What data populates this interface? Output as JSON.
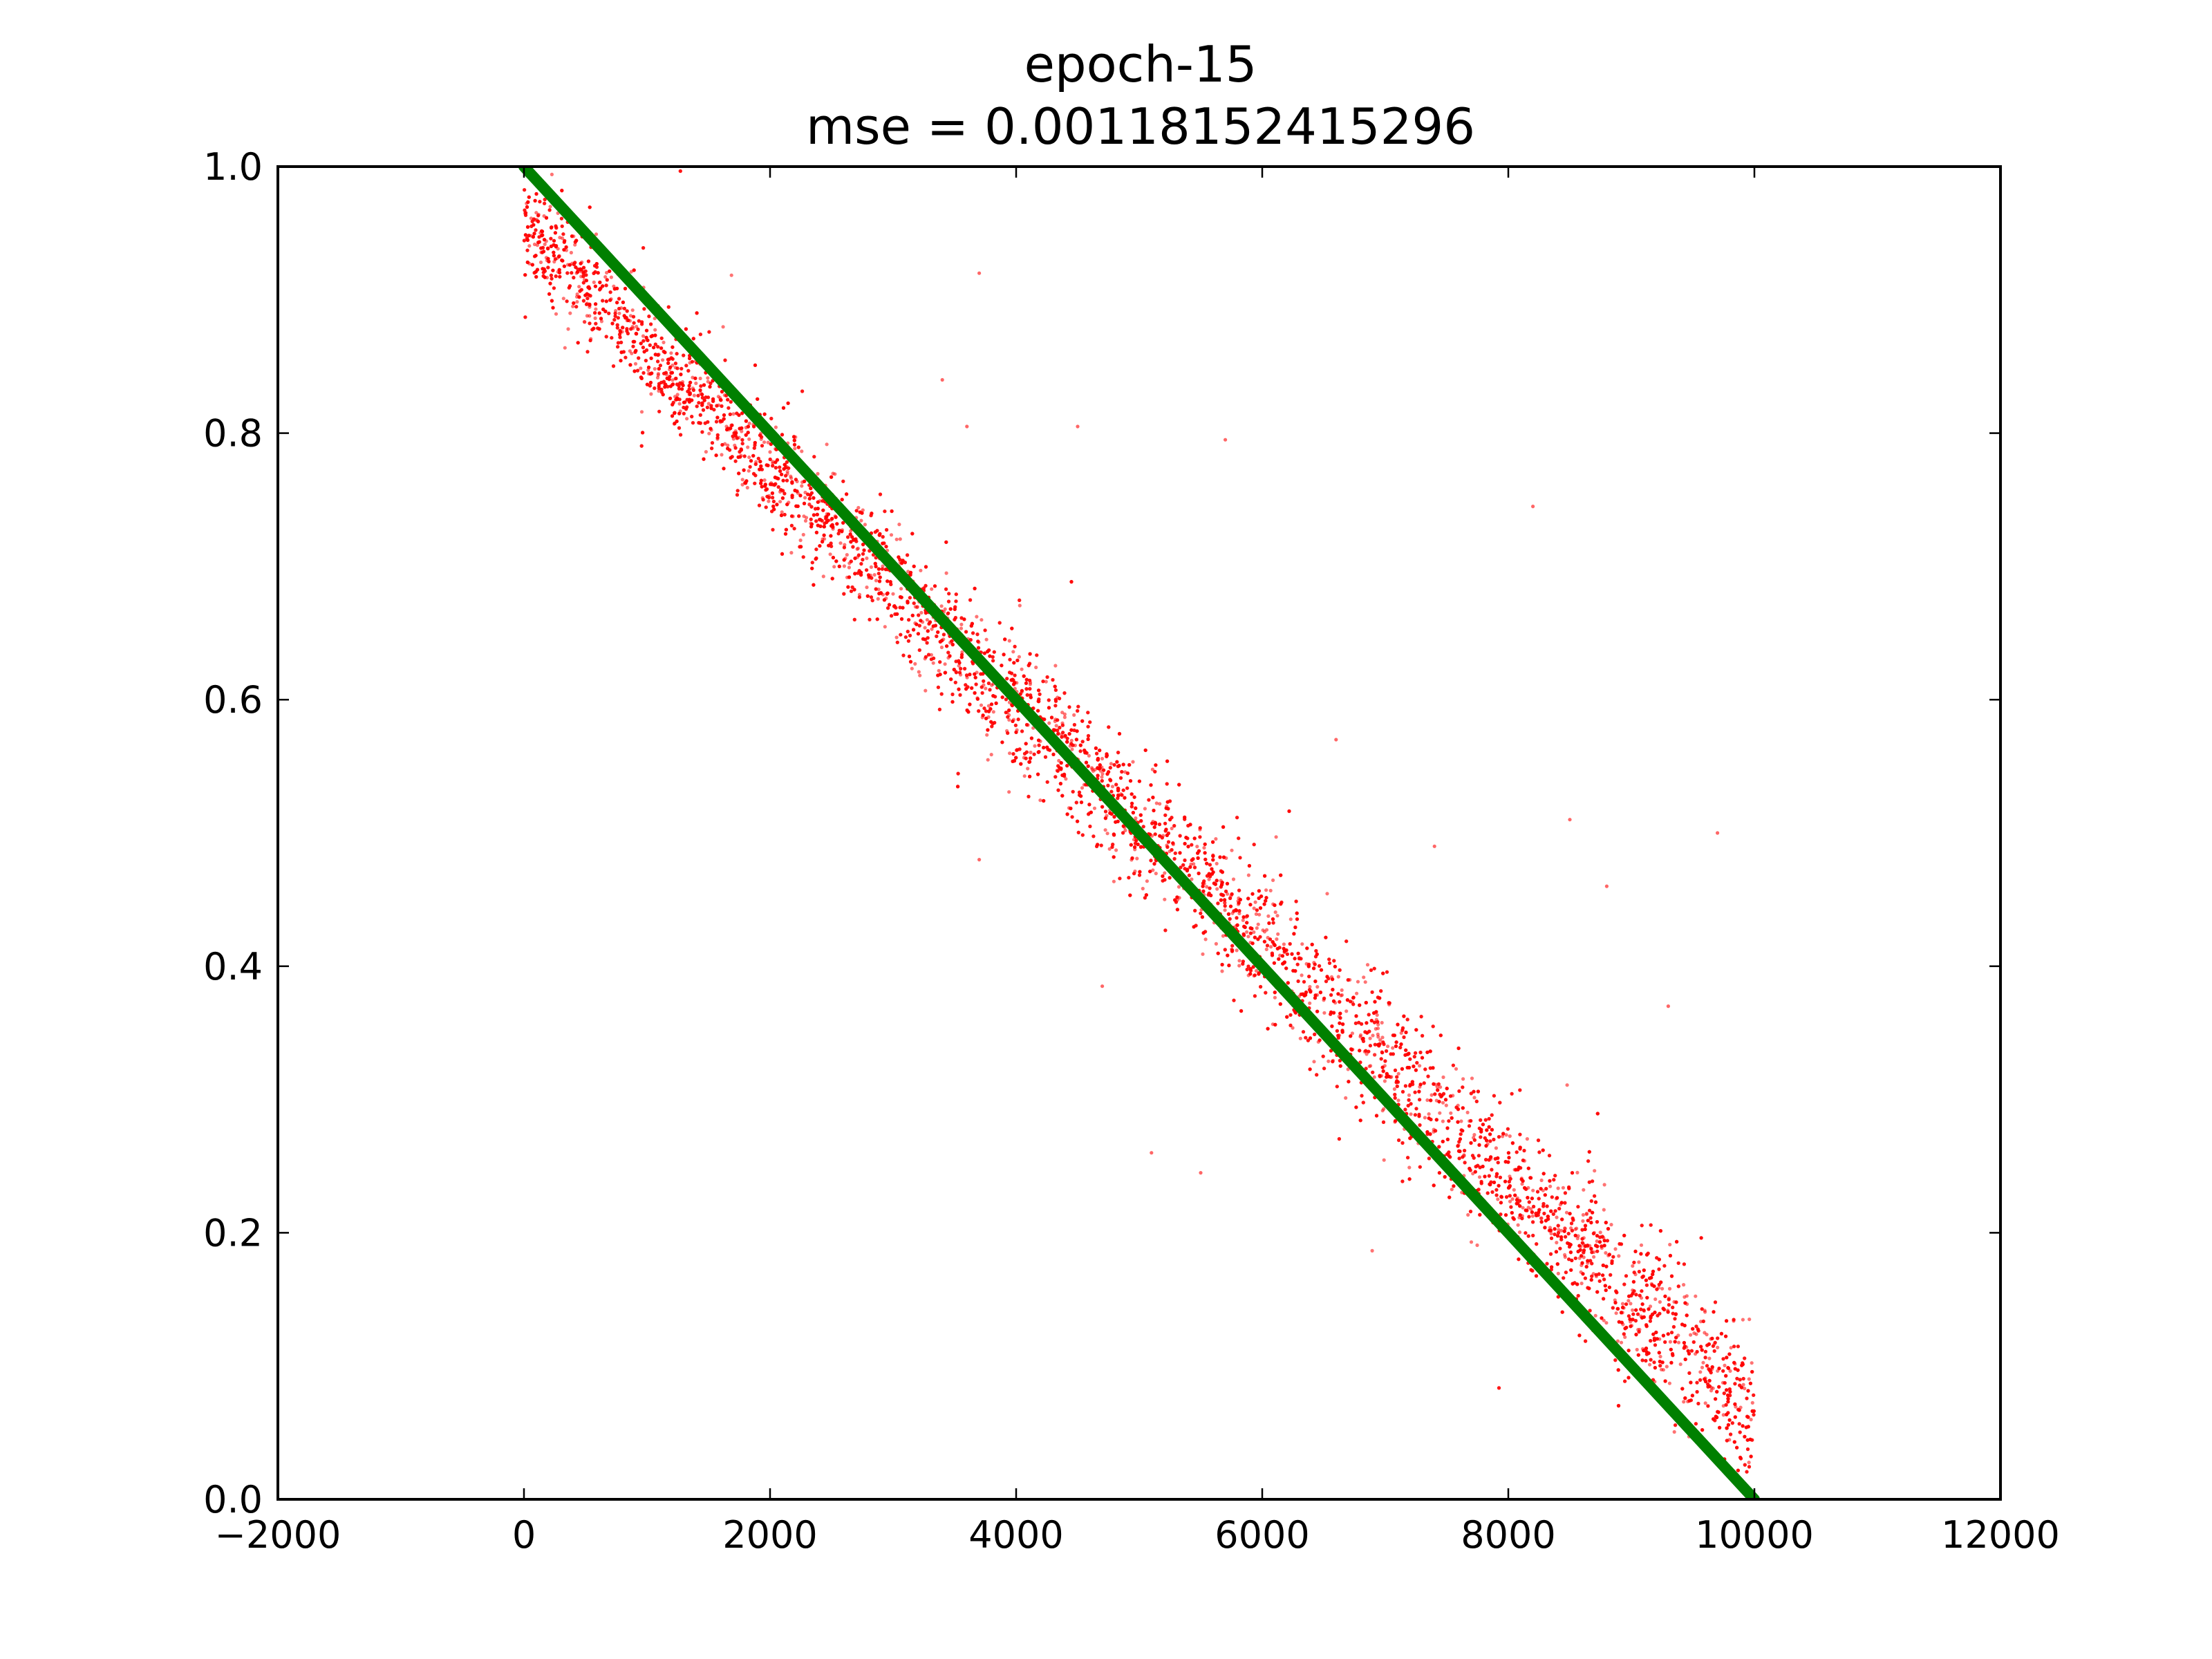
{
  "chart_data": {
    "type": "scatter",
    "title": "epoch-15",
    "subtitle": "mse = 0.00118152415296",
    "xlabel": "",
    "ylabel": "",
    "xlim": [
      -2000,
      12000
    ],
    "ylim": [
      0.0,
      1.0
    ],
    "x_ticks": [
      "−2000",
      "0",
      "2000",
      "4000",
      "6000",
      "8000",
      "10000",
      "12000"
    ],
    "y_ticks": [
      "0.0",
      "0.2",
      "0.4",
      "0.6",
      "0.8",
      "1.0"
    ],
    "x_tick_values": [
      -2000,
      0,
      2000,
      4000,
      6000,
      8000,
      10000,
      12000
    ],
    "y_tick_values": [
      0.0,
      0.2,
      0.4,
      0.6,
      0.8,
      1.0
    ],
    "grid": false,
    "legend": "none",
    "series": [
      {
        "kind": "scatter",
        "color": "#ff0000",
        "x_range": [
          0,
          10000
        ],
        "approx_count": 10000,
        "trend": {
          "x": [
            0,
            10000
          ],
          "y": [
            0.955,
            0.06
          ]
        },
        "outliers": [
          {
            "x": 3700,
            "y": 0.92
          },
          {
            "x": 4500,
            "y": 0.805
          },
          {
            "x": 5700,
            "y": 0.795
          },
          {
            "x": 8200,
            "y": 0.745
          },
          {
            "x": 9700,
            "y": 0.5
          },
          {
            "x": 8500,
            "y": 0.51
          },
          {
            "x": 7400,
            "y": 0.49
          },
          {
            "x": 3700,
            "y": 0.48
          },
          {
            "x": 4700,
            "y": 0.385
          },
          {
            "x": 5100,
            "y": 0.26
          },
          {
            "x": 5500,
            "y": 0.245
          },
          {
            "x": 8800,
            "y": 0.46
          },
          {
            "x": 9300,
            "y": 0.37
          },
          {
            "x": 6600,
            "y": 0.57
          },
          {
            "x": 3400,
            "y": 0.84
          },
          {
            "x": 3600,
            "y": 0.805
          }
        ]
      },
      {
        "kind": "line",
        "color": "#008000",
        "x": [
          0,
          10000
        ],
        "y": [
          1.0,
          0.0
        ]
      }
    ]
  }
}
